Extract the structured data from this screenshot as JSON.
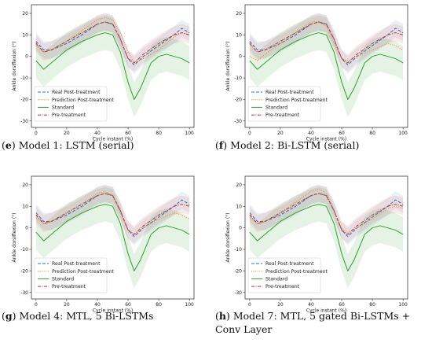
{
  "panels": [
    {
      "caption_letter": "e",
      "caption_text": " Model 1: LSTM (serial)",
      "chart_data": {
        "type": "line",
        "xlabel": "Cycle instant (%)",
        "ylabel": "Ankle dorsiflexion (°)",
        "xlim": [
          -3,
          103
        ],
        "ylim": [
          -33,
          24
        ],
        "xticks": [
          0,
          20,
          40,
          60,
          80,
          100
        ],
        "yticks": [
          -30,
          -20,
          -10,
          0,
          10,
          20
        ],
        "legend": "lower-left",
        "series": [
          {
            "name": "Real Post-treatment",
            "color": "#1f77b4",
            "style": "dashed",
            "x": [
              0,
              5,
              10,
              20,
              30,
              40,
              45,
              50,
              55,
              60,
              64,
              70,
              80,
              90,
              95,
              100
            ],
            "y": [
              7,
              3,
              3,
              6,
              10,
              15,
              16,
              15,
              8,
              -1,
              -4,
              0,
              5,
              10,
              13,
              11
            ],
            "band": 4
          },
          {
            "name": "Prediction Post-treatment",
            "color": "#ff7f0e",
            "style": "dotted",
            "x": [
              0,
              5,
              10,
              20,
              30,
              40,
              45,
              50,
              55,
              60,
              64,
              70,
              80,
              90,
              95,
              100
            ],
            "y": [
              5,
              2,
              3,
              7,
              12,
              17,
              18,
              17,
              11,
              2,
              -3,
              -1,
              3,
              9,
              11,
              10
            ]
          },
          {
            "name": "Standard",
            "color": "#2ca02c",
            "style": "solid",
            "x": [
              0,
              5,
              10,
              20,
              30,
              40,
              45,
              50,
              55,
              60,
              64,
              68,
              75,
              80,
              85,
              90,
              95,
              100
            ],
            "y": [
              -2,
              -6,
              -3,
              3,
              7,
              10,
              11,
              10,
              2,
              -12,
              -20,
              -15,
              -3,
              0,
              1,
              0,
              -1,
              -3
            ],
            "band": 8
          },
          {
            "name": "Pre-treatment",
            "color": "#d62728",
            "style": "dashdot",
            "x": [
              0,
              5,
              10,
              20,
              30,
              40,
              45,
              50,
              55,
              60,
              64,
              70,
              80,
              90,
              95,
              100
            ],
            "y": [
              6,
              2,
              3,
              7,
              11,
              15,
              16,
              15,
              8,
              -1,
              -3,
              1,
              6,
              10,
              11,
              10
            ],
            "band": 4
          }
        ]
      }
    },
    {
      "caption_letter": "f",
      "caption_text": " Model 2: Bi-LSTM (serial)",
      "chart_data": {
        "type": "line",
        "xlabel": "Cycle instant (%)",
        "ylabel": "Ankle dorsiflexion (°)",
        "xlim": [
          -3,
          103
        ],
        "ylim": [
          -33,
          24
        ],
        "xticks": [
          0,
          20,
          40,
          60,
          80,
          100
        ],
        "yticks": [
          -30,
          -20,
          -10,
          0,
          10,
          20
        ],
        "legend": "lower-left",
        "series": [
          {
            "name": "Real Post-treatment",
            "color": "#1f77b4",
            "style": "dashed",
            "x": [
              0,
              5,
              10,
              20,
              30,
              40,
              45,
              50,
              55,
              60,
              64,
              70,
              80,
              90,
              95,
              100
            ],
            "y": [
              7,
              3,
              3,
              6,
              10,
              15,
              16,
              15,
              8,
              -1,
              -4,
              0,
              5,
              10,
              13,
              11
            ],
            "band": 4
          },
          {
            "name": "Prediction Post-treatment",
            "color": "#ff7f0e",
            "style": "dotted",
            "x": [
              0,
              5,
              10,
              20,
              30,
              40,
              45,
              50,
              55,
              60,
              64,
              70,
              80,
              90,
              95,
              100
            ],
            "y": [
              0,
              -2,
              1,
              6,
              11,
              16,
              16,
              14,
              6,
              -1,
              -2,
              0,
              3,
              6,
              5,
              3
            ]
          },
          {
            "name": "Standard",
            "color": "#2ca02c",
            "style": "solid",
            "x": [
              0,
              5,
              10,
              20,
              30,
              40,
              45,
              50,
              55,
              60,
              64,
              68,
              75,
              80,
              85,
              90,
              95,
              100
            ],
            "y": [
              -2,
              -6,
              -3,
              3,
              7,
              10,
              11,
              10,
              2,
              -12,
              -20,
              -15,
              -3,
              0,
              1,
              0,
              -1,
              -3
            ],
            "band": 8
          },
          {
            "name": "Pre-treatment",
            "color": "#d62728",
            "style": "dashdot",
            "x": [
              0,
              5,
              10,
              20,
              30,
              40,
              45,
              50,
              55,
              60,
              64,
              70,
              80,
              90,
              95,
              100
            ],
            "y": [
              6,
              2,
              3,
              7,
              11,
              15,
              16,
              15,
              8,
              -1,
              -3,
              1,
              6,
              10,
              11,
              10
            ],
            "band": 4
          }
        ]
      }
    },
    {
      "caption_letter": "g",
      "caption_text": " Model 4: MTL, 5 Bi-LSTMs",
      "chart_data": {
        "type": "line",
        "xlabel": "Cycle instant (%)",
        "ylabel": "Ankle dorsiflexion (°)",
        "xlim": [
          -3,
          103
        ],
        "ylim": [
          -33,
          24
        ],
        "xticks": [
          0,
          20,
          40,
          60,
          80,
          100
        ],
        "yticks": [
          -30,
          -20,
          -10,
          0,
          10,
          20
        ],
        "legend": "lower-left",
        "series": [
          {
            "name": "Real Post-treatment",
            "color": "#1f77b4",
            "style": "dashed",
            "x": [
              0,
              5,
              10,
              20,
              30,
              40,
              45,
              50,
              55,
              60,
              64,
              70,
              80,
              90,
              95,
              100
            ],
            "y": [
              7,
              3,
              3,
              6,
              10,
              15,
              16,
              15,
              8,
              -1,
              -4,
              0,
              5,
              10,
              13,
              11
            ],
            "band": 4
          },
          {
            "name": "Prediction Post-treatment",
            "color": "#ff7f0e",
            "style": "dotted",
            "x": [
              0,
              5,
              10,
              20,
              30,
              40,
              45,
              50,
              55,
              60,
              64,
              70,
              80,
              90,
              95,
              100
            ],
            "y": [
              5,
              2,
              3,
              7,
              11,
              16,
              17,
              15,
              7,
              -1,
              -3,
              0,
              4,
              7,
              6,
              4
            ]
          },
          {
            "name": "Standard",
            "color": "#2ca02c",
            "style": "solid",
            "x": [
              0,
              5,
              10,
              20,
              30,
              40,
              45,
              50,
              55,
              60,
              64,
              68,
              75,
              80,
              85,
              90,
              95,
              100
            ],
            "y": [
              -2,
              -6,
              -3,
              3,
              7,
              10,
              11,
              10,
              2,
              -12,
              -20,
              -15,
              -3,
              0,
              1,
              0,
              -1,
              -3
            ],
            "band": 8
          },
          {
            "name": "Pre-treatment",
            "color": "#d62728",
            "style": "dashdot",
            "x": [
              0,
              5,
              10,
              20,
              30,
              40,
              45,
              50,
              55,
              60,
              64,
              70,
              80,
              90,
              95,
              100
            ],
            "y": [
              6,
              2,
              3,
              7,
              11,
              15,
              16,
              15,
              8,
              -1,
              -3,
              1,
              6,
              10,
              11,
              10
            ],
            "band": 4
          }
        ]
      }
    },
    {
      "caption_letter": "h",
      "caption_text": " Model 7: MTL, 5 gated Bi-LSTMs + Conv Layer",
      "chart_data": {
        "type": "line",
        "xlabel": "Cycle instant (%)",
        "ylabel": "Ankle dorsiflexion (°)",
        "xlim": [
          -3,
          103
        ],
        "ylim": [
          -33,
          24
        ],
        "xticks": [
          0,
          20,
          40,
          60,
          80,
          100
        ],
        "yticks": [
          -30,
          -20,
          -10,
          0,
          10,
          20
        ],
        "legend": "lower-left",
        "series": [
          {
            "name": "Real Post-treatment",
            "color": "#1f77b4",
            "style": "dashed",
            "x": [
              0,
              5,
              10,
              20,
              30,
              40,
              45,
              50,
              55,
              60,
              64,
              70,
              80,
              90,
              95,
              100
            ],
            "y": [
              7,
              3,
              3,
              6,
              10,
              15,
              16,
              15,
              8,
              -1,
              -4,
              0,
              5,
              10,
              13,
              11
            ],
            "band": 4
          },
          {
            "name": "Prediction Post-treatment",
            "color": "#ff7f0e",
            "style": "dotted",
            "x": [
              0,
              5,
              10,
              20,
              30,
              40,
              45,
              50,
              55,
              60,
              64,
              70,
              80,
              90,
              95,
              100
            ],
            "y": [
              5,
              2,
              3,
              7,
              12,
              17,
              18,
              16,
              8,
              0,
              -2,
              0,
              4,
              9,
              10,
              9
            ]
          },
          {
            "name": "Standard",
            "color": "#2ca02c",
            "style": "solid",
            "x": [
              0,
              5,
              10,
              20,
              30,
              40,
              45,
              50,
              55,
              60,
              64,
              68,
              75,
              80,
              85,
              90,
              95,
              100
            ],
            "y": [
              -2,
              -6,
              -3,
              3,
              7,
              10,
              11,
              10,
              2,
              -12,
              -20,
              -15,
              -3,
              0,
              1,
              0,
              -1,
              -3
            ],
            "band": 8
          },
          {
            "name": "Pre-treatment",
            "color": "#d62728",
            "style": "dashdot",
            "x": [
              0,
              5,
              10,
              20,
              30,
              40,
              45,
              50,
              55,
              60,
              64,
              70,
              80,
              90,
              95,
              100
            ],
            "y": [
              6,
              2,
              3,
              7,
              11,
              15,
              16,
              15,
              8,
              -1,
              -3,
              1,
              6,
              10,
              11,
              10
            ],
            "band": 4
          }
        ]
      }
    }
  ]
}
